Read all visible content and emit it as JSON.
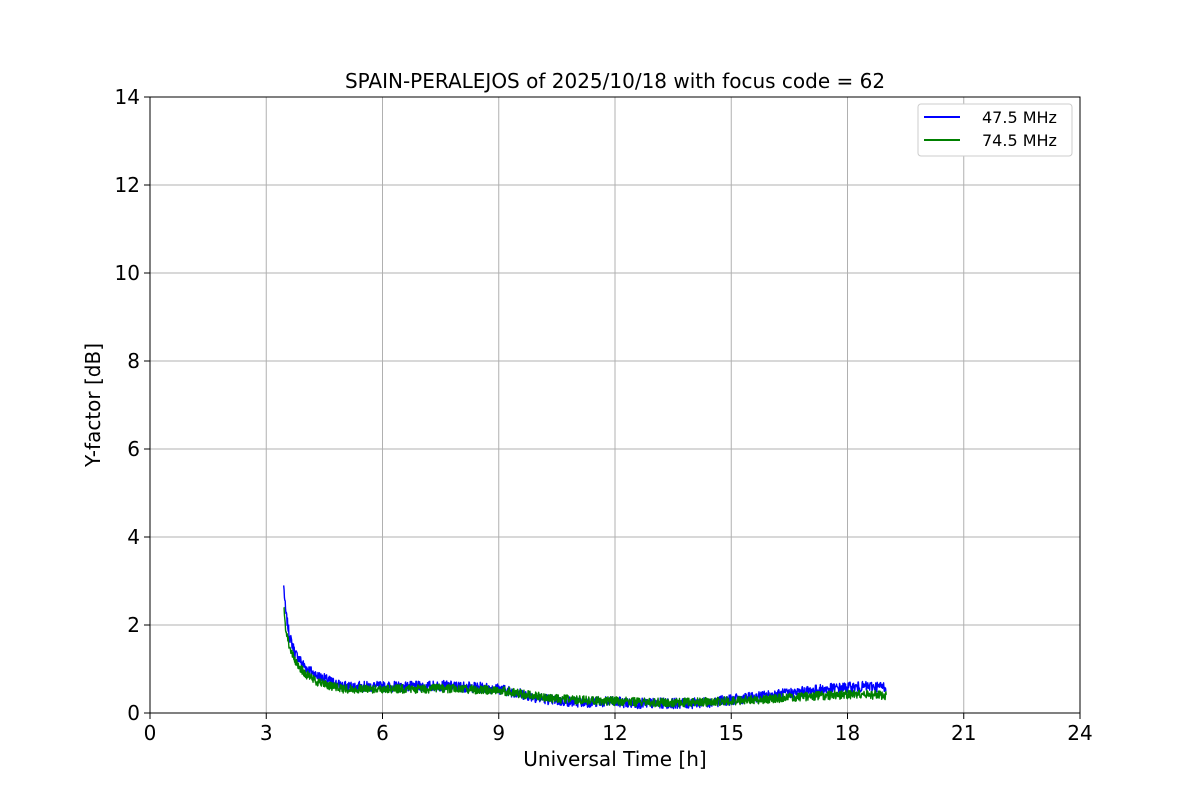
{
  "chart_data": {
    "type": "line",
    "title": "SPAIN-PERALEJOS of 2025/10/18 with focus code = 62",
    "xlabel": "Universal Time [h]",
    "ylabel": "Y-factor [dB]",
    "xlim": [
      0,
      24
    ],
    "ylim": [
      0,
      14
    ],
    "xticks": [
      "0",
      "3",
      "6",
      "9",
      "12",
      "15",
      "18",
      "21",
      "24"
    ],
    "yticks": [
      "0",
      "2",
      "4",
      "6",
      "8",
      "10",
      "12",
      "14"
    ],
    "grid": true,
    "legend_position": "top-right",
    "series": [
      {
        "name": "47.5 MHz",
        "color": "#0000ff",
        "x": [
          3.45,
          3.5,
          3.6,
          3.75,
          4.0,
          4.3,
          4.7,
          5.0,
          5.5,
          6.0,
          6.5,
          7.0,
          7.5,
          8.0,
          8.5,
          9.0,
          9.5,
          10.0,
          10.5,
          11.0,
          11.5,
          12.0,
          12.5,
          13.0,
          13.5,
          14.0,
          14.5,
          15.0,
          15.5,
          16.0,
          16.5,
          17.0,
          17.5,
          18.0,
          18.5,
          19.0
        ],
        "values": [
          2.9,
          2.3,
          1.75,
          1.35,
          1.05,
          0.85,
          0.7,
          0.6,
          0.6,
          0.6,
          0.6,
          0.6,
          0.62,
          0.6,
          0.58,
          0.55,
          0.45,
          0.35,
          0.28,
          0.25,
          0.25,
          0.25,
          0.22,
          0.22,
          0.22,
          0.22,
          0.25,
          0.3,
          0.35,
          0.4,
          0.45,
          0.5,
          0.55,
          0.58,
          0.6,
          0.6
        ],
        "noise": 0.12
      },
      {
        "name": "74.5 MHz",
        "color": "#008000",
        "x": [
          3.45,
          3.5,
          3.6,
          3.75,
          4.0,
          4.3,
          4.7,
          5.0,
          5.5,
          6.0,
          6.5,
          7.0,
          7.5,
          8.0,
          8.5,
          9.0,
          9.5,
          10.0,
          10.5,
          11.0,
          11.5,
          12.0,
          12.5,
          13.0,
          13.5,
          14.0,
          14.5,
          15.0,
          15.5,
          16.0,
          16.5,
          17.0,
          17.5,
          18.0,
          18.5,
          19.0
        ],
        "values": [
          2.4,
          1.95,
          1.5,
          1.15,
          0.9,
          0.72,
          0.6,
          0.55,
          0.55,
          0.55,
          0.55,
          0.55,
          0.56,
          0.55,
          0.53,
          0.52,
          0.45,
          0.38,
          0.32,
          0.3,
          0.28,
          0.27,
          0.25,
          0.24,
          0.23,
          0.24,
          0.26,
          0.28,
          0.3,
          0.32,
          0.35,
          0.38,
          0.4,
          0.42,
          0.42,
          0.4
        ],
        "noise": 0.1
      }
    ]
  }
}
